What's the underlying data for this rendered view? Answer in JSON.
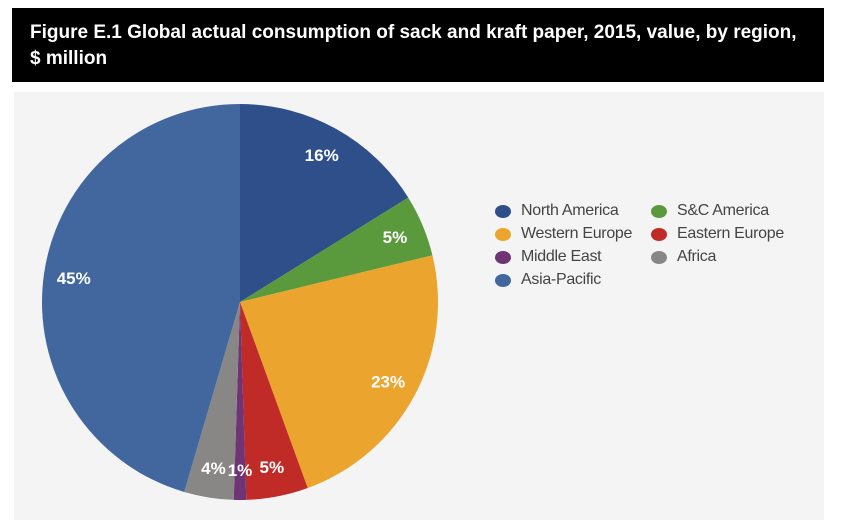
{
  "title": {
    "line1": "Figure E.1 Global actual consumption of sack and kraft paper, 2015, value, by region,",
    "line2": "$ million"
  },
  "chart_data": {
    "type": "pie",
    "title": "Figure E.1 Global actual consumption of sack and kraft paper, 2015, value, by region, $ million",
    "categories": [
      "North America",
      "S&C America",
      "Western Europe",
      "Eastern Europe",
      "Middle East",
      "Africa",
      "Asia-Pacific"
    ],
    "values": [
      16,
      5,
      23,
      5,
      1,
      4,
      45
    ],
    "labels": [
      "16%",
      "5%",
      "23%",
      "5%",
      "1%",
      "4%",
      "45%"
    ],
    "colors": [
      "#2e4f8a",
      "#5a9a3c",
      "#eba52f",
      "#c02a27",
      "#6e3475",
      "#888786",
      "#42679e"
    ],
    "legend_placement": "right",
    "legend_order": [
      0,
      1,
      2,
      3,
      4,
      5,
      6
    ]
  }
}
